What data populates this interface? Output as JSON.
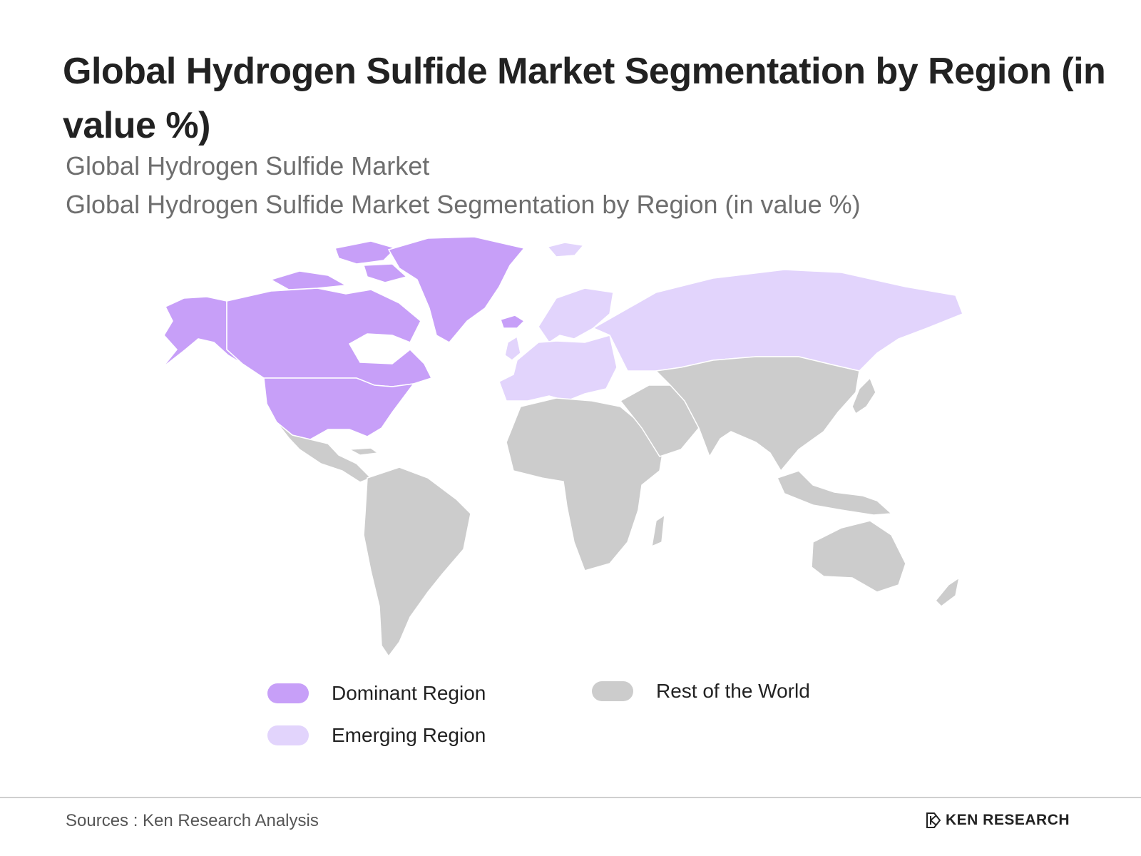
{
  "header": {
    "title": "Global Hydrogen Sulfide Market Segmentation by Region (in value %)",
    "subtitle_1": "Global Hydrogen Sulfide Market",
    "subtitle_2": "Global Hydrogen Sulfide Market Segmentation by Region (in value %)"
  },
  "regions": {
    "dominant": {
      "label": "Dominant Region",
      "color": "#c79ff8",
      "areas": [
        "North America",
        "Greenland"
      ]
    },
    "emerging": {
      "label": "Emerging Region",
      "color": "#e2d4fc",
      "areas": [
        "Europe",
        "Russia"
      ]
    },
    "rest": {
      "label": "Rest of the World",
      "color": "#cccccc",
      "areas": [
        "Latin America",
        "Africa",
        "Middle East",
        "Asia",
        "Oceania"
      ]
    }
  },
  "footer": {
    "source": "Sources : Ken Research Analysis",
    "brand": "KEN RESEARCH",
    "brand_icon": "ken-research-logo-icon"
  }
}
